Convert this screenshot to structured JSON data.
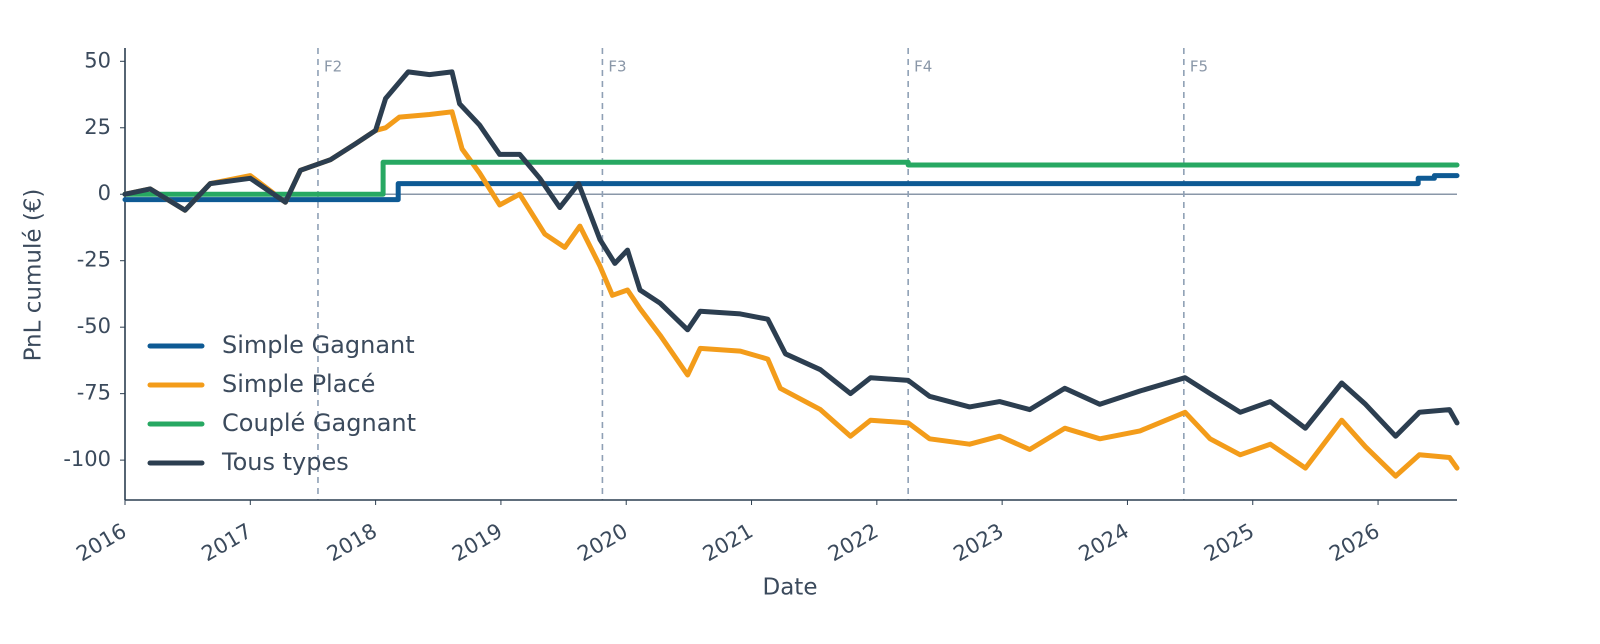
{
  "chart_data": {
    "type": "line",
    "x_label": "Date",
    "y_label": "PnL cumulé (€)",
    "xlim": [
      2016,
      2026.63
    ],
    "xticks": [
      2016,
      2017,
      2018,
      2019,
      2020,
      2021,
      2022,
      2023,
      2024,
      2025,
      2026
    ],
    "ylim": [
      -115,
      55
    ],
    "yticks": [
      -100,
      -75,
      -50,
      -25,
      0,
      25,
      50
    ],
    "hline": 0,
    "legend": "lower-left",
    "annotations": [
      {
        "x": 2017.54,
        "label": "F2"
      },
      {
        "x": 2019.81,
        "label": "F3"
      },
      {
        "x": 2022.25,
        "label": "F4"
      },
      {
        "x": 2024.45,
        "label": "F5"
      }
    ],
    "series": [
      {
        "name": "Simple Gagnant",
        "color": "#0e5a94",
        "x": [
          2016,
          2018.18,
          2018.18,
          2026.32,
          2026.32,
          2026.45,
          2026.45,
          2026.63
        ],
        "values": [
          -2,
          -2,
          4,
          4,
          6,
          6,
          7,
          7
        ]
      },
      {
        "name": "Simple Placé",
        "color": "#f39c1a",
        "x": [
          2016,
          2016.2,
          2016.48,
          2016.68,
          2017.0,
          2017.28,
          2017.4,
          2017.64,
          2017.84,
          2018.0,
          2018.08,
          2018.19,
          2018.43,
          2018.61,
          2018.69,
          2018.83,
          2018.99,
          2019.15,
          2019.35,
          2019.51,
          2019.63,
          2019.79,
          2019.89,
          2020.01,
          2020.11,
          2020.27,
          2020.49,
          2020.59,
          2020.91,
          2021.13,
          2021.23,
          2021.55,
          2021.79,
          2021.95,
          2022.25,
          2022.42,
          2022.74,
          2022.98,
          2023.22,
          2023.5,
          2023.78,
          2024.1,
          2024.46,
          2024.66,
          2024.9,
          2025.14,
          2025.42,
          2025.71,
          2025.9,
          2026.14,
          2026.33,
          2026.57,
          2026.63
        ],
        "values": [
          0,
          2,
          -6,
          4,
          7,
          -3,
          9,
          13,
          19,
          24,
          25,
          29,
          30,
          31,
          17,
          8,
          -4,
          0,
          -15,
          -20,
          -12,
          -27,
          -38,
          -36,
          -43,
          -53,
          -68,
          -58,
          -59,
          -62,
          -73,
          -81,
          -91,
          -85,
          -86,
          -92,
          -94,
          -91,
          -96,
          -88,
          -92,
          -89,
          -82,
          -92,
          -98,
          -94,
          -103,
          -85,
          -95,
          -106,
          -98,
          -99,
          -103
        ]
      },
      {
        "name": "Couplé Gagnant",
        "color": "#27a862",
        "x": [
          2016,
          2018.06,
          2018.06,
          2022.25,
          2022.25,
          2026.63
        ],
        "values": [
          0,
          0,
          12,
          12,
          11,
          11
        ]
      },
      {
        "name": "Tous types",
        "color": "#2c3e50",
        "x": [
          2016,
          2016.2,
          2016.48,
          2016.68,
          2017.0,
          2017.28,
          2017.4,
          2017.64,
          2017.84,
          2018.0,
          2018.08,
          2018.26,
          2018.43,
          2018.61,
          2018.67,
          2018.83,
          2018.99,
          2019.15,
          2019.31,
          2019.47,
          2019.62,
          2019.79,
          2019.91,
          2020.01,
          2020.11,
          2020.27,
          2020.49,
          2020.59,
          2020.91,
          2021.13,
          2021.27,
          2021.55,
          2021.79,
          2021.95,
          2022.25,
          2022.42,
          2022.74,
          2022.98,
          2023.22,
          2023.5,
          2023.78,
          2024.1,
          2024.46,
          2024.66,
          2024.9,
          2025.14,
          2025.42,
          2025.71,
          2025.9,
          2026.14,
          2026.33,
          2026.57,
          2026.63
        ],
        "values": [
          0,
          2,
          -6,
          4,
          6,
          -3,
          9,
          13,
          19,
          24,
          36,
          46,
          45,
          46,
          34,
          26,
          15,
          15,
          6,
          -5,
          4,
          -17,
          -26,
          -21,
          -36,
          -41,
          -51,
          -44,
          -45,
          -47,
          -60,
          -66,
          -75,
          -69,
          -70,
          -76,
          -80,
          -78,
          -81,
          -73,
          -79,
          -74,
          -69,
          -75,
          -82,
          -78,
          -88,
          -71,
          -79,
          -91,
          -82,
          -81,
          -86
        ]
      }
    ]
  }
}
